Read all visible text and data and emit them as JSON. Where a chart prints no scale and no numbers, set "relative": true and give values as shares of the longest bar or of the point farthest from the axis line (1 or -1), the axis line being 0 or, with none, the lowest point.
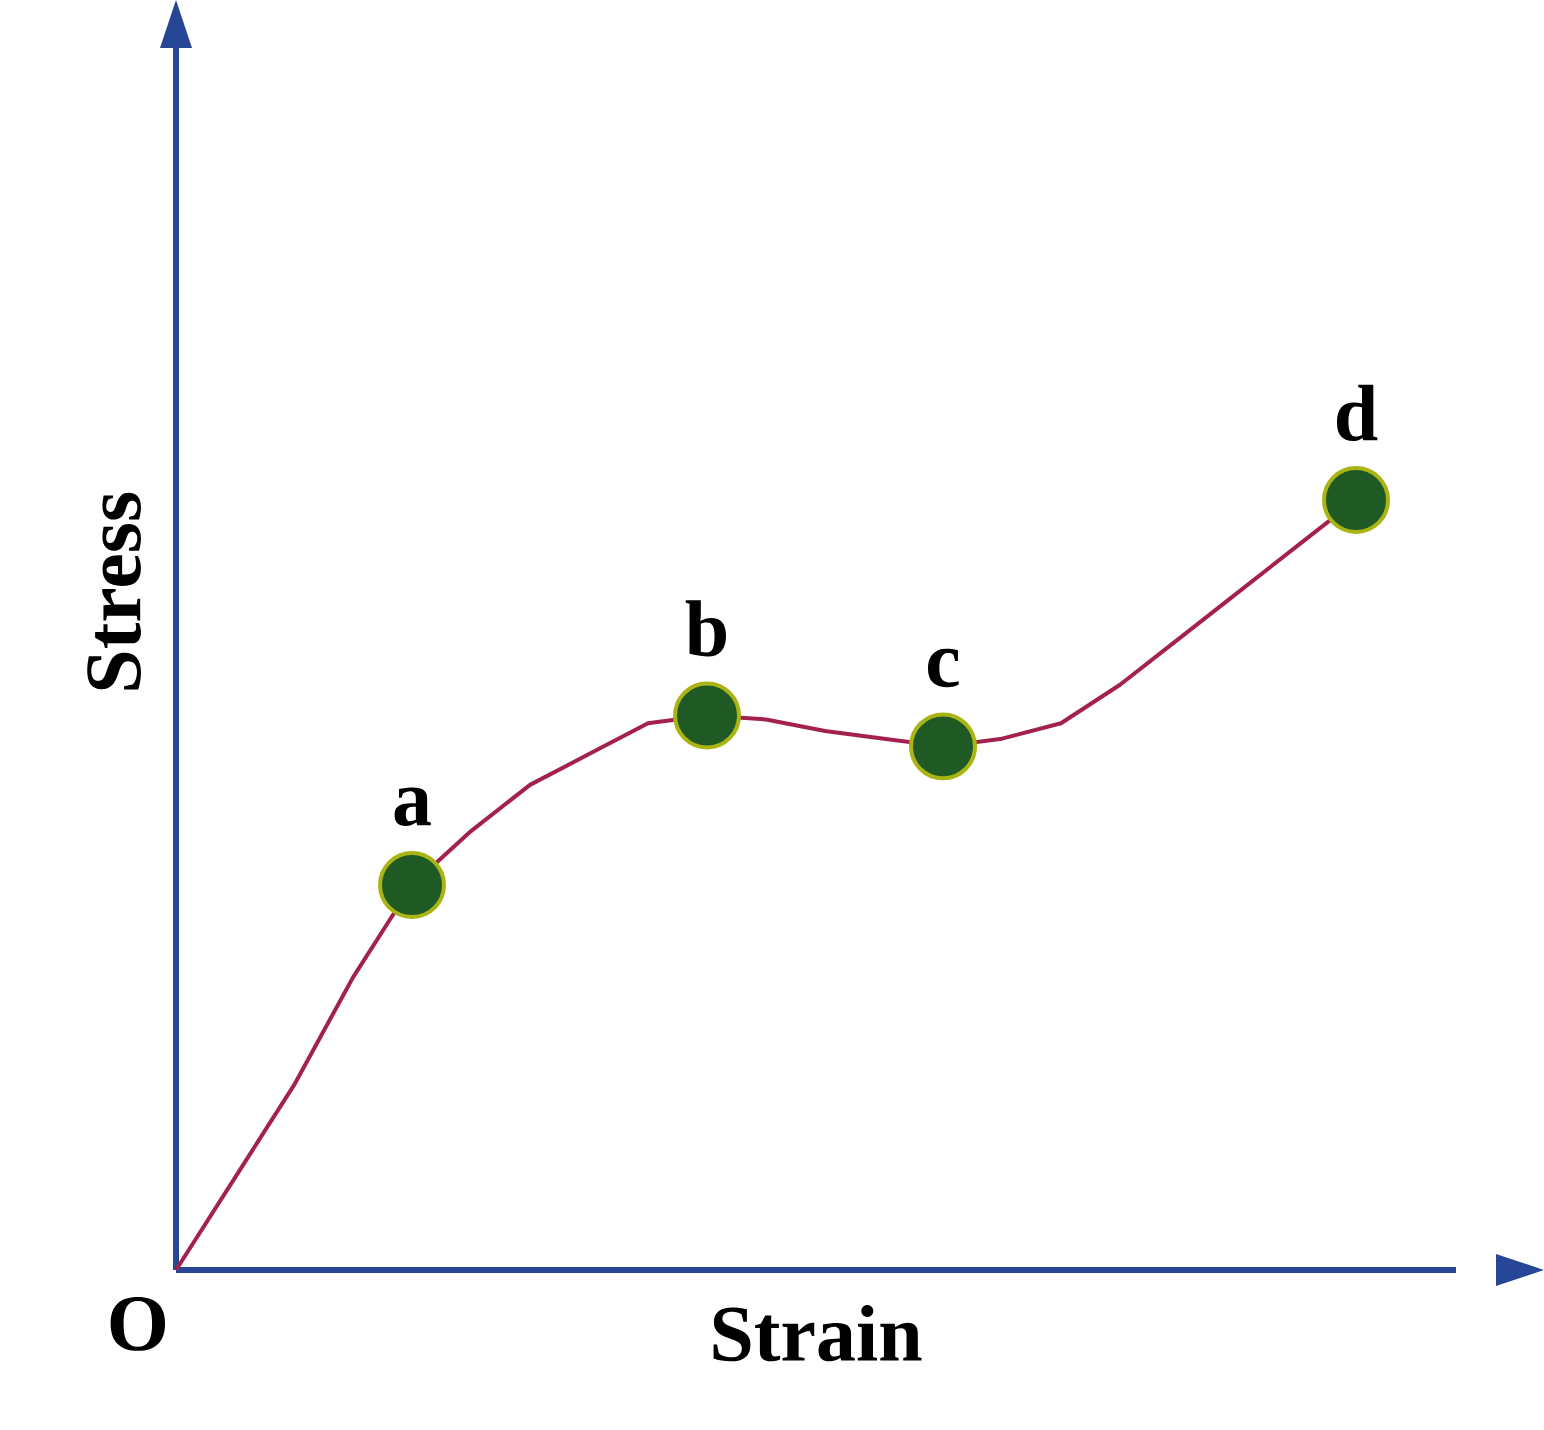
{
  "chart_data": {
    "type": "line",
    "relative": true,
    "xlabel": "Strain",
    "ylabel": "Stress",
    "categories": [
      null,
      null,
      null,
      null,
      null,
      null,
      null,
      null,
      null,
      null,
      null,
      null,
      null,
      null,
      null,
      null,
      null,
      null,
      null,
      null,
      null
    ],
    "series": [
      {
        "color": "#a3204f",
        "values": [
          0,
          0.12,
          0.24,
          0.38,
          0.5,
          0.57,
          0.63,
          0.67,
          0.71,
          0.72,
          0.715,
          0.7,
          0.69,
          0.68,
          0.69,
          0.71,
          0.76,
          0.82,
          0.88,
          0.94,
          1
        ]
      }
    ],
    "annotations": [
      "O",
      {
        "text": "a",
        "y": 0.5
      },
      {
        "text": "b",
        "y": 0.72
      },
      {
        "text": "c",
        "y": 0.68
      },
      {
        "text": "d",
        "y": 1
      }
    ]
  }
}
